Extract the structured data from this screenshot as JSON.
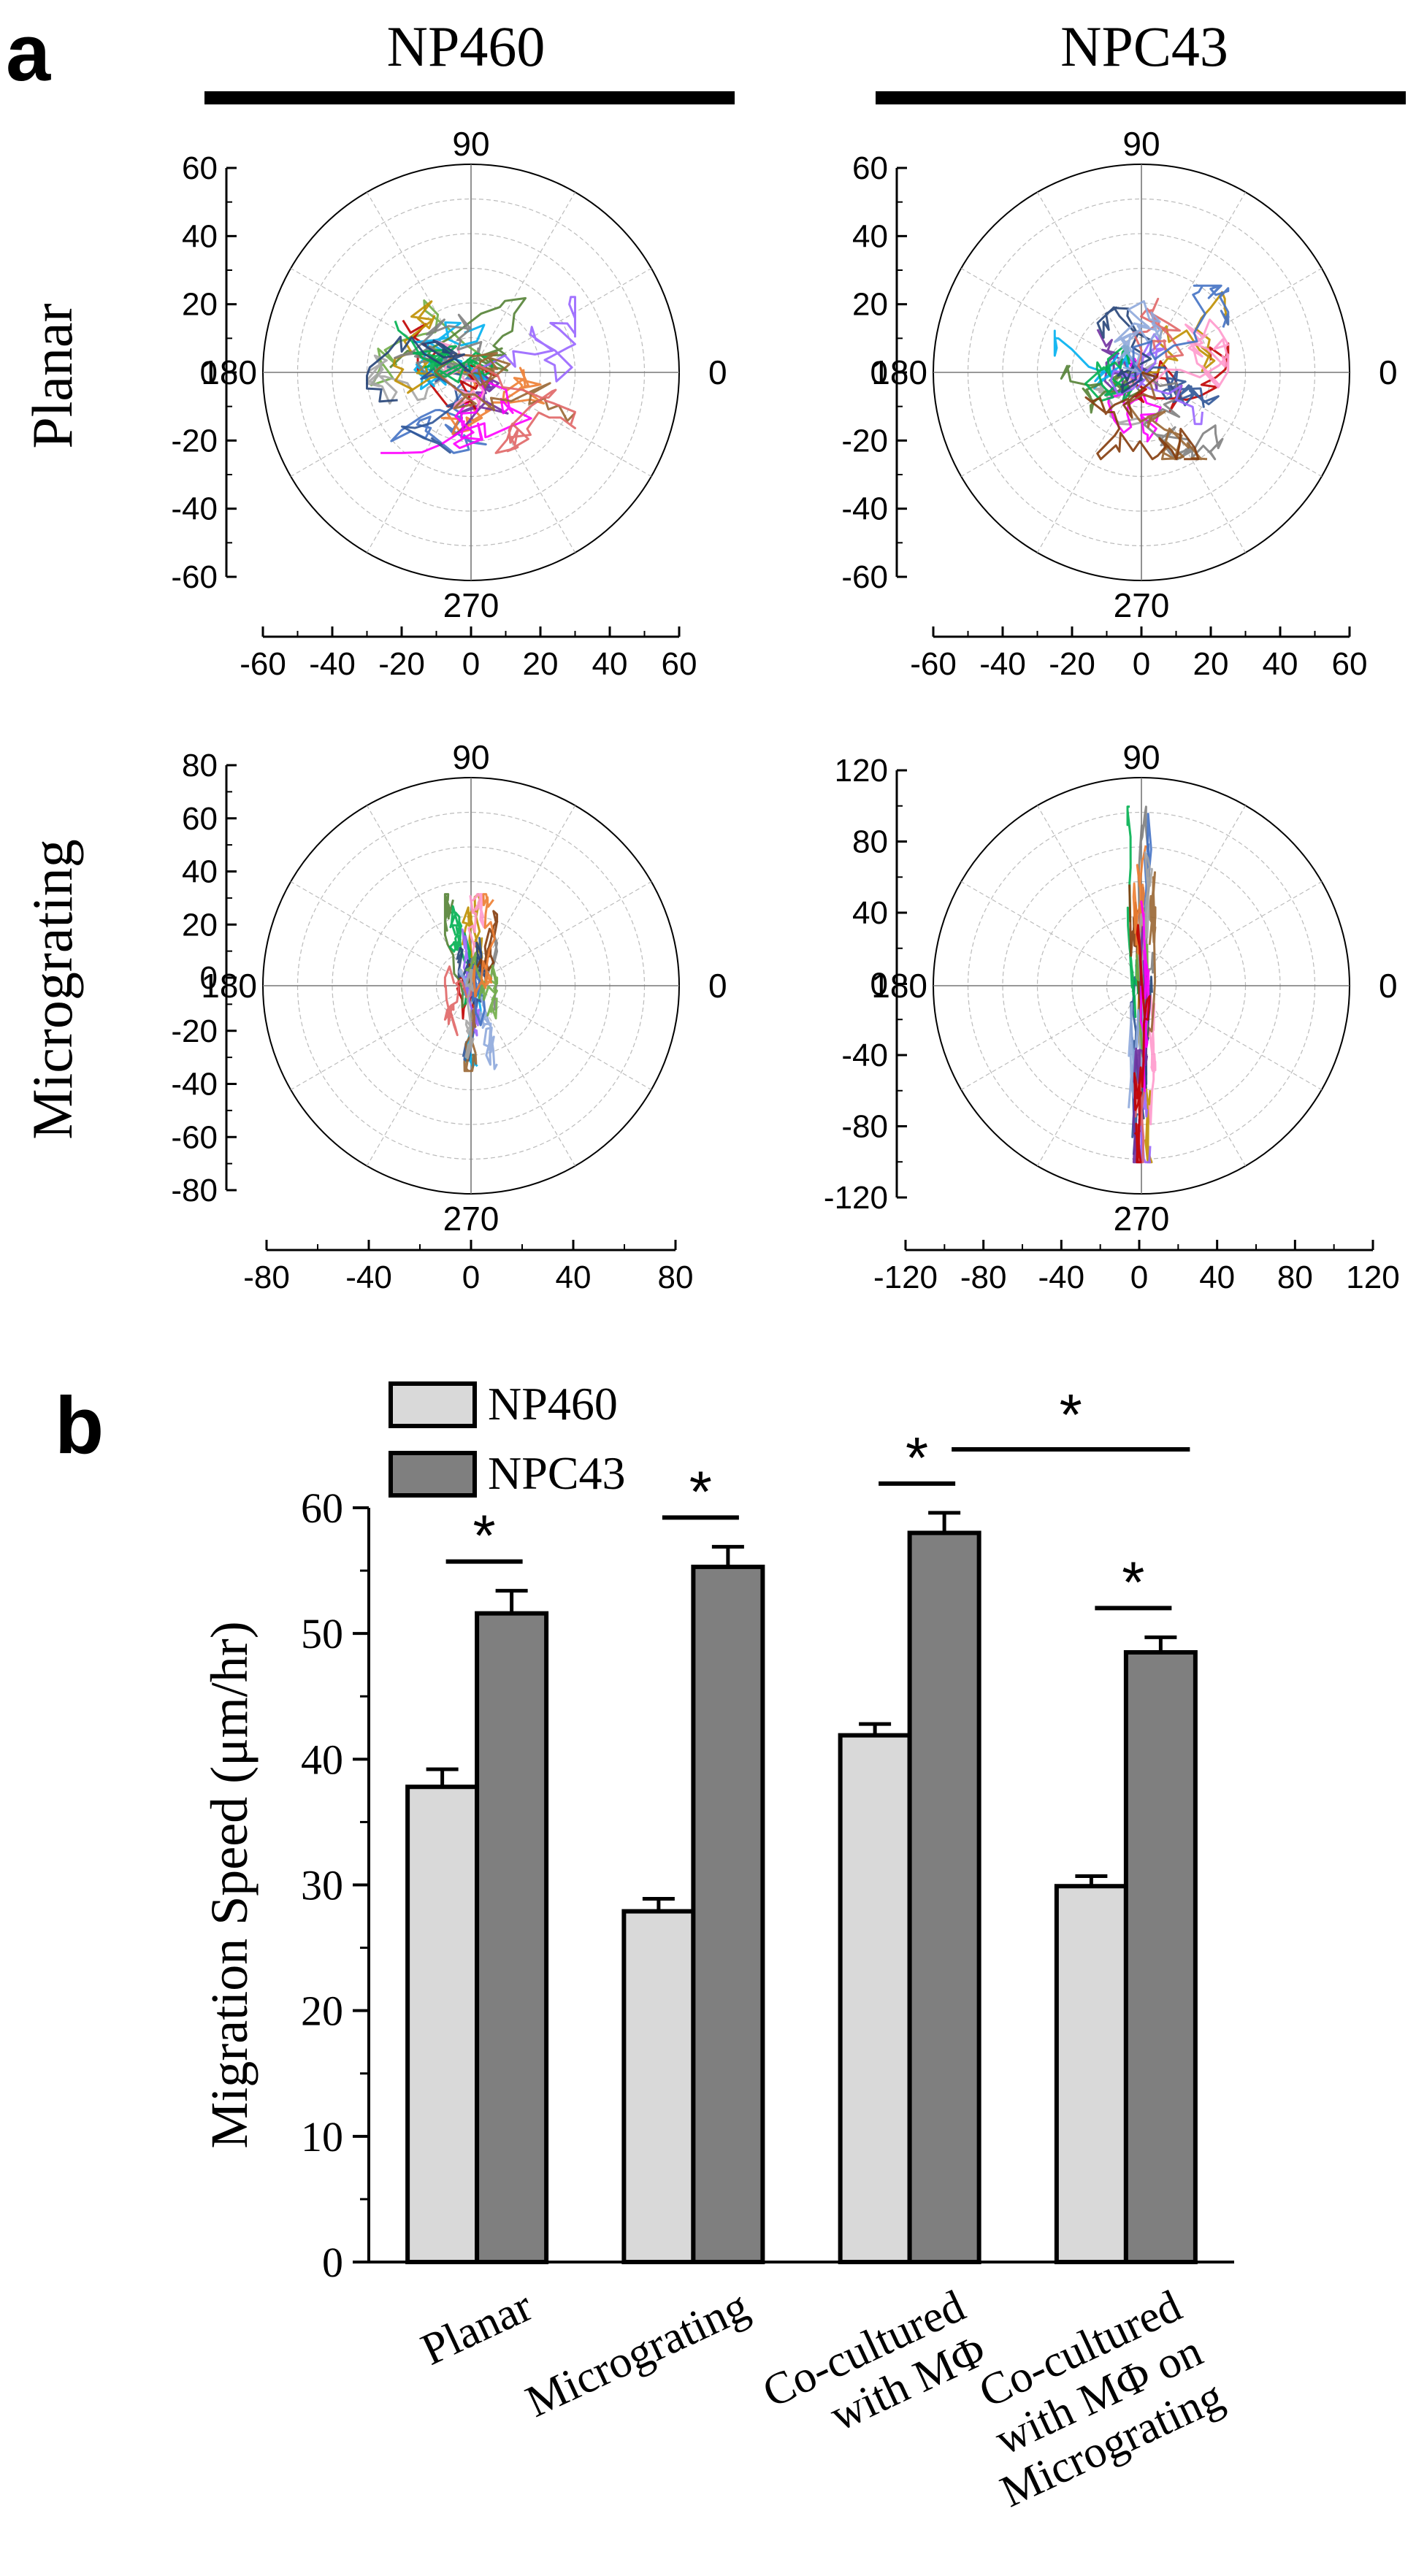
{
  "panel_a": {
    "label": "a",
    "col_headers": [
      "NP460",
      "NPC43"
    ],
    "row_headers": [
      "Planar",
      "Micrograting"
    ],
    "angle_labels": {
      "top": "90",
      "bottom": "270",
      "left": "180",
      "right": "0"
    },
    "plots": [
      {
        "id": "np460-planar",
        "radius": 60,
        "yticks": [
          "60",
          "40",
          "20",
          "0",
          "-20",
          "-40",
          "-60"
        ],
        "xticks": [
          "-60",
          "-40",
          "-20",
          "0",
          "20",
          "40",
          "60"
        ],
        "trace_extent": {
          "x": [
            -30,
            30
          ],
          "y": [
            -25,
            20
          ]
        }
      },
      {
        "id": "npc43-planar",
        "radius": 60,
        "yticks": [
          "60",
          "40",
          "20",
          "0",
          "-20",
          "-40",
          "-60"
        ],
        "xticks": [
          "-60",
          "-40",
          "-20",
          "0",
          "20",
          "40",
          "60"
        ],
        "trace_extent": {
          "x": [
            -25,
            25
          ],
          "y": [
            -25,
            25
          ]
        }
      },
      {
        "id": "np460-micrograting",
        "radius": 80,
        "yticks": [
          "80",
          "60",
          "40",
          "20",
          "0",
          "-20",
          "-40",
          "-60",
          "-80"
        ],
        "xticks": [
          "-80",
          "-40",
          "0",
          "40",
          "80"
        ],
        "trace_extent": {
          "x": [
            -10,
            10
          ],
          "y": [
            -30,
            38
          ]
        }
      },
      {
        "id": "npc43-micrograting",
        "radius": 120,
        "yticks": [
          "120",
          "80",
          "40",
          "0",
          "-40",
          "-80",
          "-120"
        ],
        "xticks": [
          "-120",
          "-80",
          "-40",
          "0",
          "40",
          "80",
          "120"
        ],
        "trace_extent": {
          "x": [
            -8,
            8
          ],
          "y": [
            -100,
            105
          ]
        }
      }
    ]
  },
  "panel_b": {
    "label": "b",
    "significance_mark": "*",
    "chart_data": {
      "type": "bar",
      "ylabel": "Migration Speed (μm/hr)",
      "ylim": [
        0,
        60
      ],
      "yticks": [
        "0",
        "10",
        "20",
        "30",
        "40",
        "50",
        "60"
      ],
      "categories": [
        [
          "Planar"
        ],
        [
          "Micrograting"
        ],
        [
          "Co-cultured",
          "with MΦ"
        ],
        [
          "Co-cultured",
          "with MΦ on",
          "Micrograting"
        ]
      ],
      "series": [
        {
          "name": "NP460",
          "color": "#d9d9d9",
          "values": [
            37.8,
            27.9,
            41.9,
            29.9
          ],
          "errors": [
            1.4,
            1.0,
            0.9,
            0.8
          ]
        },
        {
          "name": "NPC43",
          "color": "#7f7f7f",
          "values": [
            51.6,
            55.3,
            58.0,
            48.5
          ],
          "errors": [
            1.8,
            1.6,
            1.6,
            1.2
          ]
        }
      ],
      "significance": [
        {
          "between": "NP460-NPC43",
          "category": 0
        },
        {
          "between": "NP460-NPC43",
          "category": 1
        },
        {
          "between": "NP460-NPC43",
          "category": 2
        },
        {
          "between": "NP460-NPC43",
          "category": 3
        },
        {
          "between": "NPC43 cat2 vs cat3",
          "category": -1
        }
      ]
    }
  }
}
